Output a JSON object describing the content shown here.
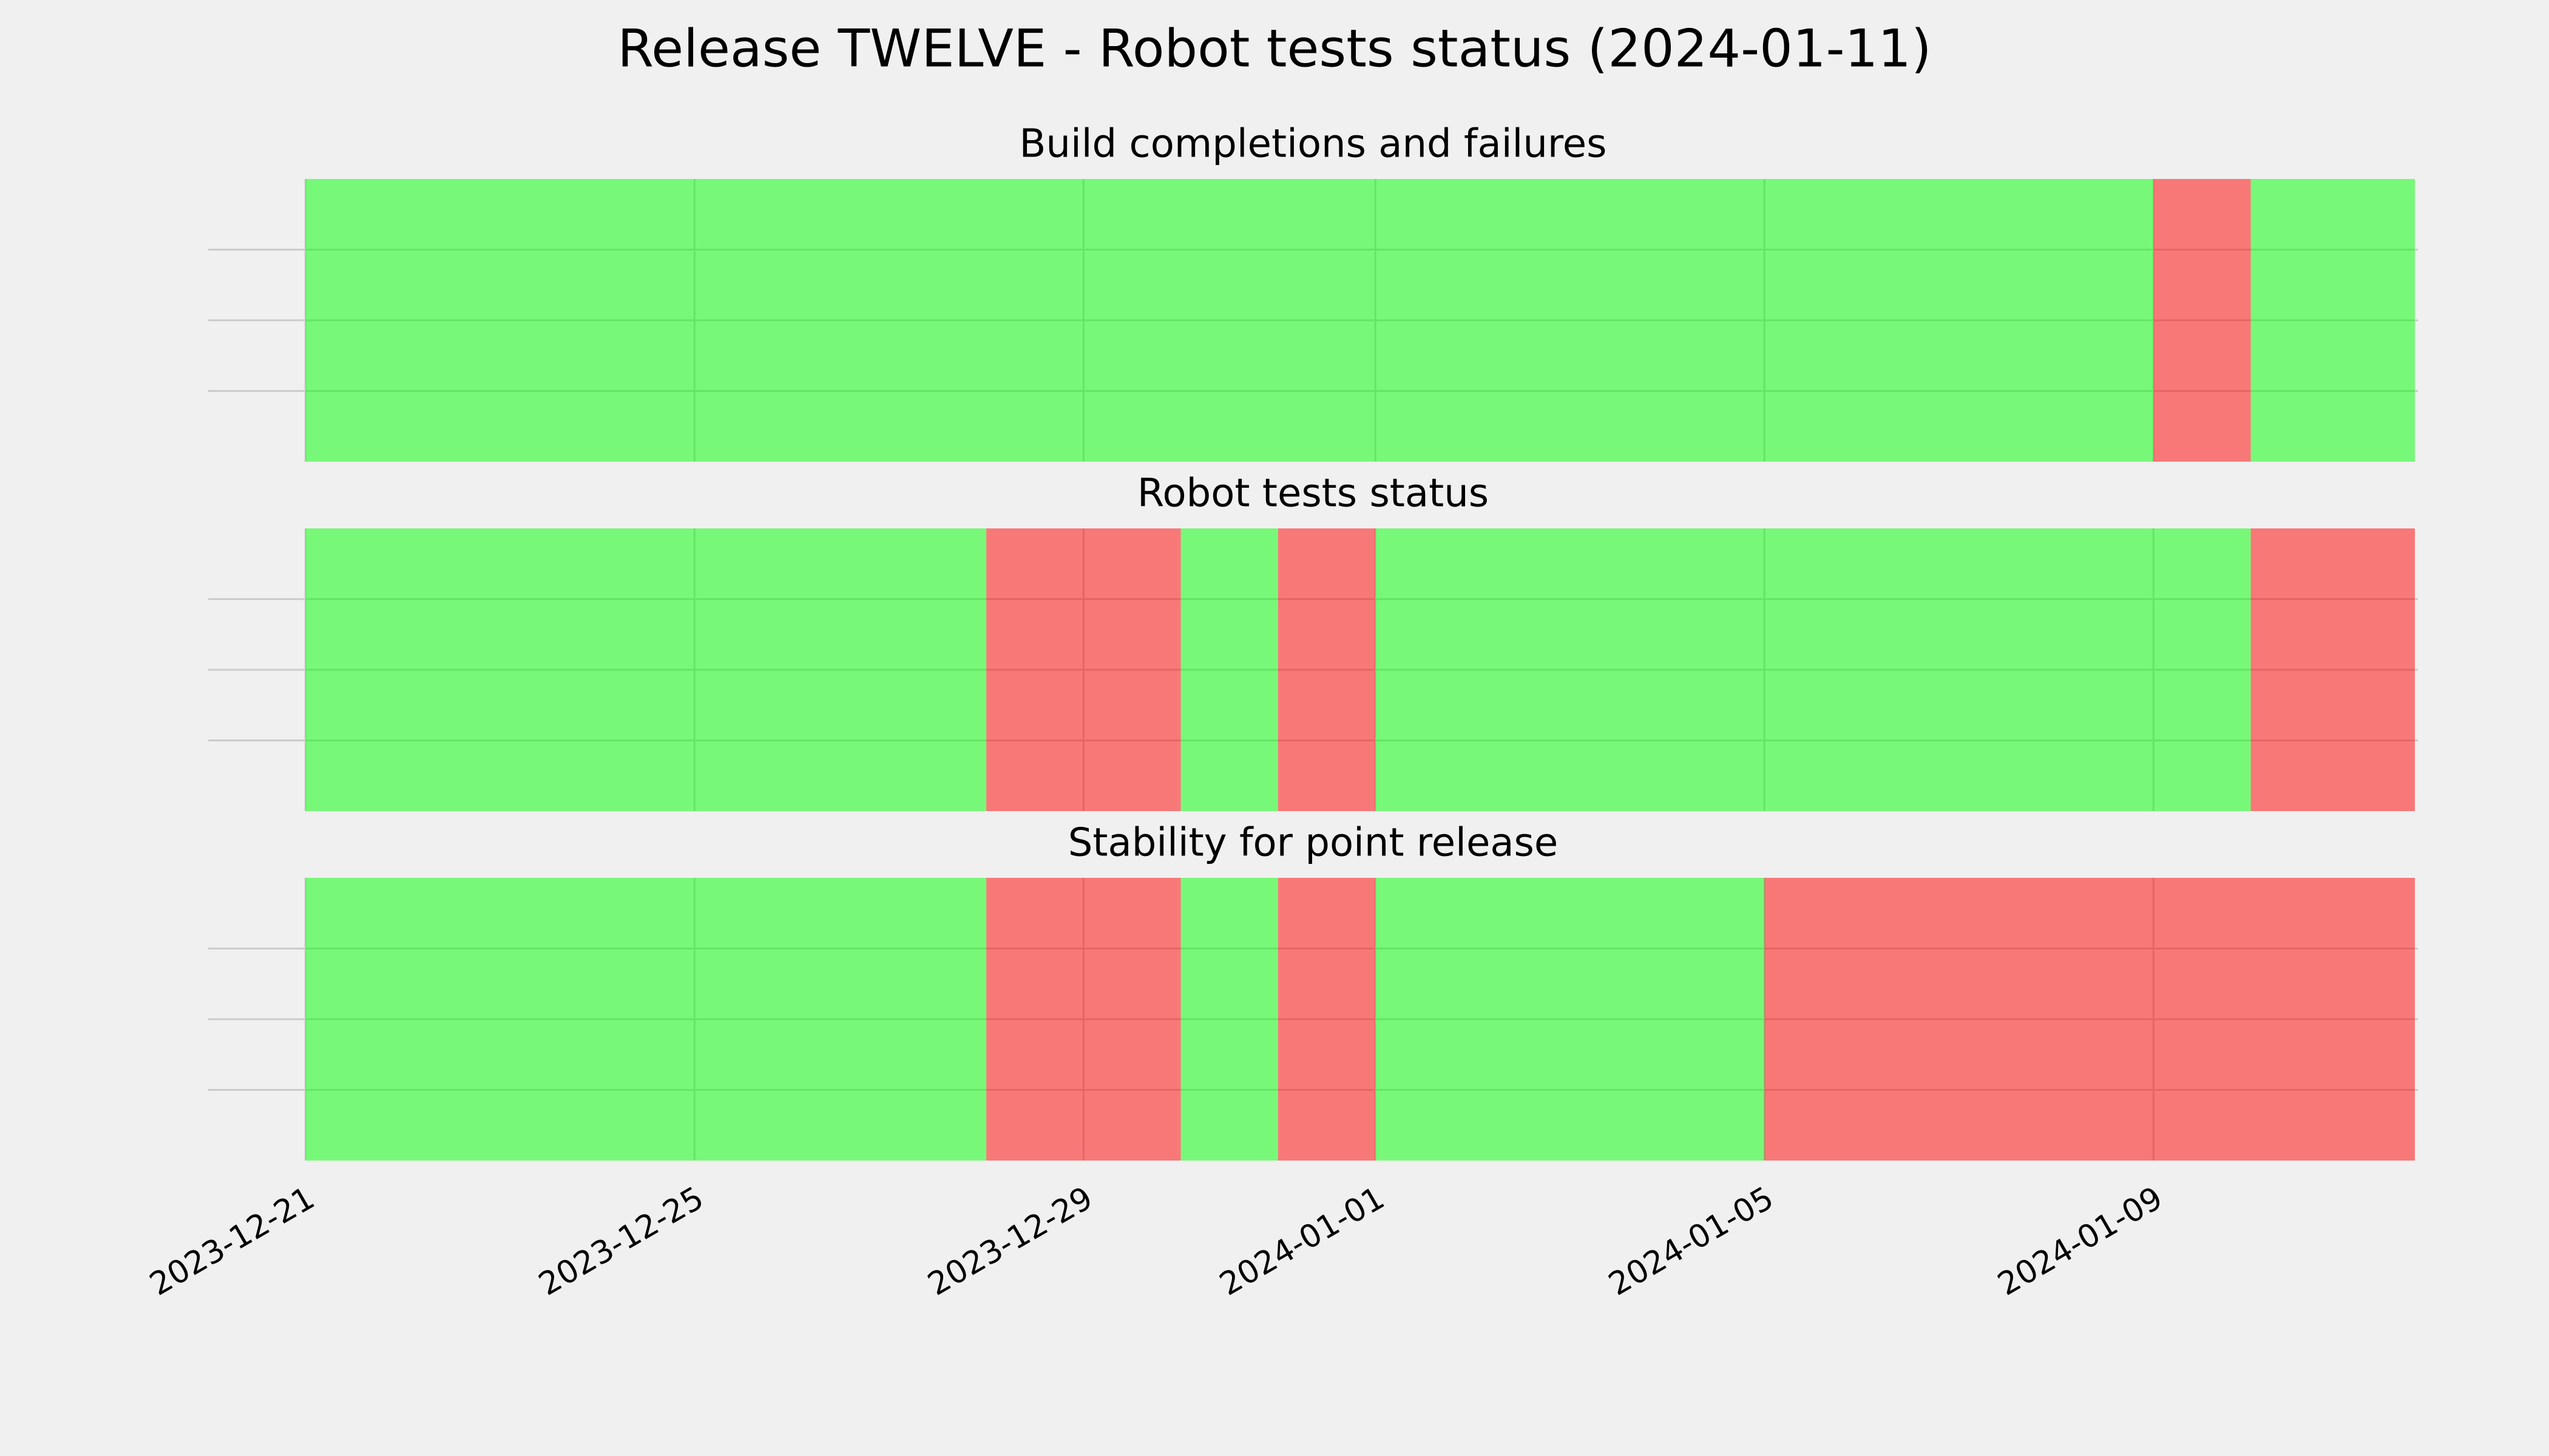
{
  "chart_data": {
    "type": "status_timeline",
    "title": "Release TWELVE - Robot tests status (2024-01-11)",
    "xlim": [
      "2023-12-20T00:00Z",
      "2024-01-11T17:15Z"
    ],
    "xticks": [
      "2023-12-21",
      "2023-12-25",
      "2023-12-29",
      "2024-01-01",
      "2024-01-05",
      "2024-01-09"
    ],
    "ylim": [
      0,
      1
    ],
    "yticks": [
      0.25,
      0.5,
      0.75
    ],
    "grid": true,
    "alpha": 0.5,
    "panels": [
      {
        "title": "Build completions and failures",
        "segments": [
          {
            "start": "2023-12-21",
            "end": "2024-01-09",
            "color": "#00ff00"
          },
          {
            "start": "2024-01-09",
            "end": "2024-01-10",
            "color": "#ff0000"
          },
          {
            "start": "2024-01-10",
            "end": "2024-01-11T16:30Z",
            "color": "#00ff00"
          }
        ]
      },
      {
        "title": "Robot tests status",
        "segments": [
          {
            "start": "2023-12-21",
            "end": "2023-12-28",
            "color": "#00ff00"
          },
          {
            "start": "2023-12-28",
            "end": "2023-12-30",
            "color": "#ff0000"
          },
          {
            "start": "2023-12-30",
            "end": "2023-12-31",
            "color": "#00ff00"
          },
          {
            "start": "2023-12-31",
            "end": "2024-01-01",
            "color": "#ff0000"
          },
          {
            "start": "2024-01-01",
            "end": "2024-01-10",
            "color": "#00ff00"
          },
          {
            "start": "2024-01-10",
            "end": "2024-01-11T16:30Z",
            "color": "#ff0000"
          }
        ]
      },
      {
        "title": "Stability for point release",
        "segments": [
          {
            "start": "2023-12-21",
            "end": "2023-12-28",
            "color": "#00ff00"
          },
          {
            "start": "2023-12-28",
            "end": "2023-12-30",
            "color": "#ff0000"
          },
          {
            "start": "2023-12-30",
            "end": "2023-12-31",
            "color": "#00ff00"
          },
          {
            "start": "2023-12-31",
            "end": "2024-01-01",
            "color": "#ff0000"
          },
          {
            "start": "2024-01-01",
            "end": "2024-01-05",
            "color": "#00ff00"
          },
          {
            "start": "2024-01-05",
            "end": "2024-01-11T16:30Z",
            "color": "#ff0000"
          }
        ]
      }
    ]
  }
}
